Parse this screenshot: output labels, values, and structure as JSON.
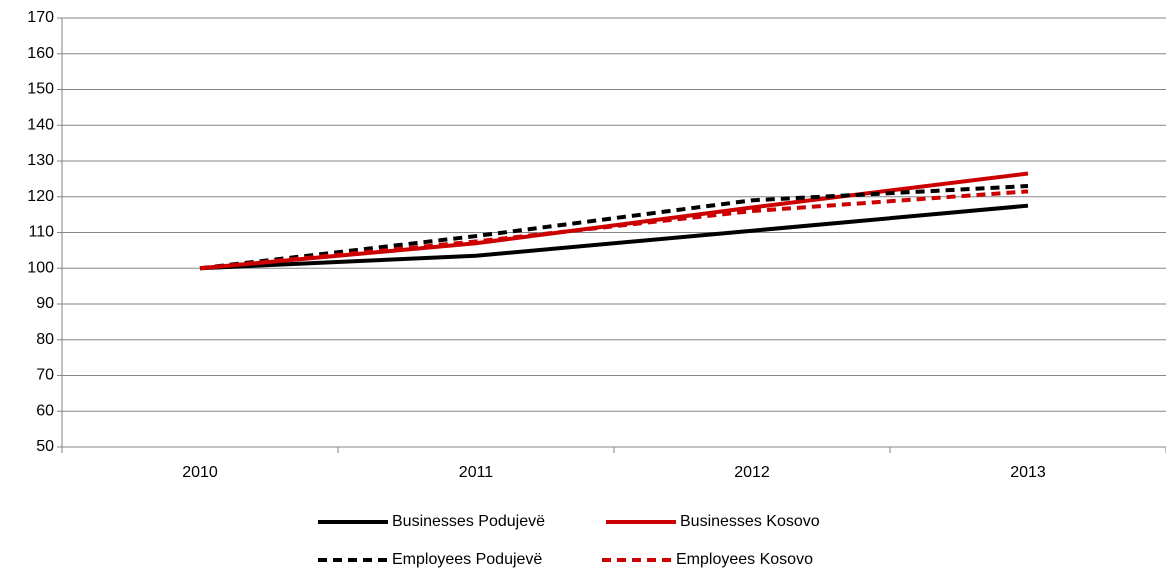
{
  "chart_data": {
    "type": "line",
    "categories": [
      "2010",
      "2011",
      "2012",
      "2013"
    ],
    "series": [
      {
        "name": "Businesses Podujevë",
        "color": "#000000",
        "dashed": false,
        "values": [
          100,
          103.5,
          110.5,
          117.5
        ]
      },
      {
        "name": "Businesses Kosovo",
        "color": "#cc0000",
        "dashed": false,
        "values": [
          100,
          107,
          117,
          126.5
        ]
      },
      {
        "name": "Employees Podujevë",
        "color": "#000000",
        "dashed": true,
        "values": [
          100,
          109,
          119,
          123
        ]
      },
      {
        "name": "Employees Kosovo",
        "color": "#cc0000",
        "dashed": true,
        "values": [
          100,
          107.5,
          116,
          121.5
        ]
      }
    ],
    "ylim": [
      50,
      170
    ],
    "yticks": [
      50,
      60,
      70,
      80,
      90,
      100,
      110,
      120,
      130,
      140,
      150,
      160,
      170
    ],
    "grid": true,
    "legend": "bottom"
  }
}
